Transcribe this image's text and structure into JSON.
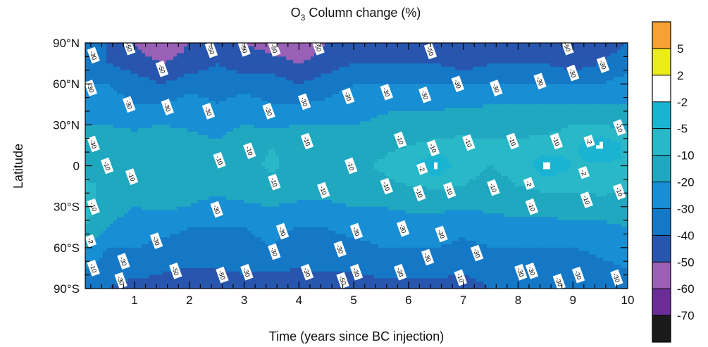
{
  "chart_data": {
    "type": "heatmap",
    "subtype": "filled contour",
    "title_prefix": "O",
    "title_subscript": "3",
    "title_suffix": " Column  change (%)",
    "xlabel": "Time (years since BC injection)",
    "ylabel": "Latitude",
    "xlim": [
      0,
      10
    ],
    "ylim": [
      -90,
      90
    ],
    "x_ticks": [
      1,
      2,
      3,
      4,
      5,
      6,
      7,
      8,
      9,
      10
    ],
    "x_tick_labels": [
      "1",
      "2",
      "3",
      "4",
      "5",
      "6",
      "7",
      "8",
      "9",
      "10"
    ],
    "y_ticks": [
      90,
      60,
      30,
      0,
      -30,
      -60,
      -90
    ],
    "y_tick_labels": [
      "90°N",
      "60°N",
      "30°N",
      "0",
      "30°S",
      "60°S",
      "90°S"
    ],
    "colorbar": {
      "levels": [
        5,
        2,
        -2,
        -5,
        -10,
        -20,
        -30,
        -40,
        -50,
        -60,
        -70
      ],
      "level_labels": [
        "5",
        "2",
        "-2",
        "-5",
        "-10",
        "-20",
        "-30",
        "-40",
        "-50",
        "-60",
        "-70"
      ],
      "bin_colors": [
        "#f7a035",
        "#ecec1c",
        "#ffffff",
        "#1ab3d2",
        "#28b8c8",
        "#1fa8c0",
        "#188fd4",
        "#1478c6",
        "#2856ae",
        "#9960b6",
        "#6c2c98",
        "#1a1a1a"
      ]
    },
    "latitudes": [
      90,
      75,
      60,
      45,
      30,
      15,
      0,
      -15,
      -30,
      -45,
      -60,
      -75,
      -90
    ],
    "times": [
      0.1,
      0.5,
      1,
      1.5,
      2,
      2.5,
      3,
      3.5,
      4,
      4.5,
      5,
      5.5,
      6,
      6.5,
      7,
      7.5,
      8,
      8.5,
      9,
      9.5,
      10
    ],
    "values": [
      [
        -40,
        -40,
        -50,
        -60,
        -50,
        -45,
        -50,
        -55,
        -60,
        -50,
        -45,
        -45,
        -45,
        -45,
        -50,
        -45,
        -45,
        -45,
        -50,
        -45,
        -40
      ],
      [
        -35,
        -40,
        -45,
        -50,
        -45,
        -40,
        -45,
        -45,
        -50,
        -45,
        -40,
        -40,
        -40,
        -40,
        -45,
        -40,
        -40,
        -40,
        -45,
        -40,
        -35
      ],
      [
        -30,
        -30,
        -35,
        -40,
        -35,
        -35,
        -35,
        -35,
        -40,
        -35,
        -30,
        -30,
        -30,
        -30,
        -30,
        -30,
        -30,
        -30,
        -30,
        -30,
        -25
      ],
      [
        -25,
        -25,
        -30,
        -30,
        -25,
        -30,
        -25,
        -30,
        -30,
        -28,
        -25,
        -22,
        -22,
        -22,
        -22,
        -20,
        -20,
        -20,
        -20,
        -20,
        -20
      ],
      [
        -20,
        -20,
        -22,
        -20,
        -22,
        -25,
        -20,
        -22,
        -20,
        -20,
        -20,
        -18,
        -15,
        -15,
        -12,
        -15,
        -12,
        -12,
        -10,
        -10,
        -12
      ],
      [
        -20,
        -15,
        -15,
        -12,
        -15,
        -18,
        -12,
        -10,
        -12,
        -15,
        -15,
        -12,
        -10,
        -8,
        -8,
        -8,
        -9,
        -8,
        -6,
        -1,
        -6
      ],
      [
        -20,
        -12,
        -12,
        -12,
        -15,
        -15,
        -12,
        -9,
        -12,
        -15,
        -12,
        -9,
        -6,
        -1,
        -8,
        -10,
        -8,
        -1,
        -5,
        -6,
        -5
      ],
      [
        -5,
        -15,
        -10,
        -15,
        -15,
        -15,
        -14,
        -12,
        -15,
        -15,
        -15,
        -12,
        -10,
        -9,
        -10,
        -12,
        -10,
        -8,
        -8,
        -6,
        -8
      ],
      [
        -5,
        -15,
        -20,
        -18,
        -20,
        -25,
        -22,
        -20,
        -22,
        -22,
        -20,
        -20,
        -18,
        -18,
        -18,
        -18,
        -15,
        -15,
        -15,
        -15,
        -15
      ],
      [
        -10,
        -20,
        -25,
        -28,
        -30,
        -30,
        -30,
        -28,
        -30,
        -30,
        -28,
        -28,
        -25,
        -25,
        -28,
        -25,
        -25,
        -25,
        -22,
        -22,
        -20
      ],
      [
        -20,
        -30,
        -30,
        -32,
        -32,
        -35,
        -32,
        -30,
        -35,
        -32,
        -32,
        -30,
        -30,
        -30,
        -32,
        -30,
        -30,
        -30,
        -30,
        -28,
        -25
      ],
      [
        -30,
        -35,
        -35,
        -38,
        -40,
        -40,
        -38,
        -38,
        -40,
        -38,
        -38,
        -35,
        -35,
        -35,
        -38,
        -35,
        -35,
        -35,
        -35,
        -32,
        -30
      ],
      [
        -40,
        -40,
        -45,
        -45,
        -50,
        -50,
        -45,
        -50,
        -45,
        -50,
        -50,
        -45,
        -45,
        -45,
        -45,
        -40,
        -40,
        -40,
        -40,
        -40,
        -35
      ]
    ],
    "contour_labels": [
      {
        "x": 0.25,
        "y": 81,
        "t": "-30"
      },
      {
        "x": 0.9,
        "y": 87,
        "t": "-50"
      },
      {
        "x": 1.5,
        "y": 71,
        "t": "-50"
      },
      {
        "x": 2.4,
        "y": 85,
        "t": "-50"
      },
      {
        "x": 3.0,
        "y": 86,
        "t": "-50"
      },
      {
        "x": 3.55,
        "y": 86,
        "t": "-50"
      },
      {
        "x": 4.35,
        "y": 87,
        "t": "-50"
      },
      {
        "x": 6.4,
        "y": 84,
        "t": "-50"
      },
      {
        "x": 8.9,
        "y": 87,
        "t": "-50"
      },
      {
        "x": 9.55,
        "y": 74,
        "t": "-30"
      },
      {
        "x": 0.2,
        "y": 57,
        "t": "-30"
      },
      {
        "x": 0.25,
        "y": 16,
        "t": "-30"
      },
      {
        "x": 0.9,
        "y": 45,
        "t": "-30"
      },
      {
        "x": 1.6,
        "y": 43,
        "t": "-30"
      },
      {
        "x": 2.35,
        "y": 40,
        "t": "-30"
      },
      {
        "x": 3.45,
        "y": 40,
        "t": "-30"
      },
      {
        "x": 4.1,
        "y": 47,
        "t": "-30"
      },
      {
        "x": 4.9,
        "y": 51,
        "t": "-30"
      },
      {
        "x": 5.6,
        "y": 54,
        "t": "-30"
      },
      {
        "x": 6.3,
        "y": 52,
        "t": "-30"
      },
      {
        "x": 6.9,
        "y": 60,
        "t": "-30"
      },
      {
        "x": 7.6,
        "y": 57,
        "t": "-30"
      },
      {
        "x": 8.4,
        "y": 62,
        "t": "-30"
      },
      {
        "x": 9.0,
        "y": 68,
        "t": "-30"
      },
      {
        "x": 0.5,
        "y": 0,
        "t": "-10"
      },
      {
        "x": 0.95,
        "y": -8,
        "t": "-10"
      },
      {
        "x": 3.1,
        "y": 11,
        "t": "-10"
      },
      {
        "x": 2.55,
        "y": 4,
        "t": "-10"
      },
      {
        "x": 4.15,
        "y": 18,
        "t": "-10"
      },
      {
        "x": 3.55,
        "y": -12,
        "t": "-10"
      },
      {
        "x": 5.85,
        "y": 19,
        "t": "-10"
      },
      {
        "x": 6.45,
        "y": 13,
        "t": "-10"
      },
      {
        "x": 7.1,
        "y": 17,
        "t": "-10"
      },
      {
        "x": 7.9,
        "y": 18,
        "t": "-10"
      },
      {
        "x": 8.7,
        "y": 18,
        "t": "-10"
      },
      {
        "x": 9.85,
        "y": 28,
        "t": "-10"
      },
      {
        "x": 4.95,
        "y": 0,
        "t": "-10"
      },
      {
        "x": 4.45,
        "y": -18,
        "t": "-10"
      },
      {
        "x": 5.6,
        "y": -15,
        "t": "-10"
      },
      {
        "x": 6.2,
        "y": -20,
        "t": "-10"
      },
      {
        "x": 6.75,
        "y": -18,
        "t": "-10"
      },
      {
        "x": 7.55,
        "y": -16,
        "t": "-10"
      },
      {
        "x": 8.25,
        "y": -30,
        "t": "-10"
      },
      {
        "x": 9.25,
        "y": -25,
        "t": "-10"
      },
      {
        "x": 9.85,
        "y": -19,
        "t": "-10"
      },
      {
        "x": 6.25,
        "y": -2,
        "t": "-2"
      },
      {
        "x": 8.2,
        "y": -13,
        "t": "-2"
      },
      {
        "x": 9.3,
        "y": 18,
        "t": "-2"
      },
      {
        "x": 9.2,
        "y": -5,
        "t": "-2"
      },
      {
        "x": 0.25,
        "y": -30,
        "t": "-10"
      },
      {
        "x": 0.2,
        "y": -55,
        "t": "-2"
      },
      {
        "x": 0.25,
        "y": -75,
        "t": "-10"
      },
      {
        "x": 1.4,
        "y": -55,
        "t": "-30"
      },
      {
        "x": 0.8,
        "y": -70,
        "t": "-30"
      },
      {
        "x": 0.75,
        "y": -84,
        "t": "-30"
      },
      {
        "x": 1.75,
        "y": -77,
        "t": "-50"
      },
      {
        "x": 2.5,
        "y": -32,
        "t": "-30"
      },
      {
        "x": 2.6,
        "y": -80,
        "t": "-50"
      },
      {
        "x": 3.05,
        "y": -78,
        "t": "-30"
      },
      {
        "x": 3.7,
        "y": -48,
        "t": "-30"
      },
      {
        "x": 3.55,
        "y": -63,
        "t": "-30"
      },
      {
        "x": 4.15,
        "y": -78,
        "t": "-30"
      },
      {
        "x": 4.75,
        "y": -61,
        "t": "-30"
      },
      {
        "x": 4.8,
        "y": -84,
        "t": "-50"
      },
      {
        "x": 5.05,
        "y": -48,
        "t": "-30"
      },
      {
        "x": 5.05,
        "y": -78,
        "t": "-30"
      },
      {
        "x": 5.9,
        "y": -46,
        "t": "-30"
      },
      {
        "x": 5.85,
        "y": -78,
        "t": "-30"
      },
      {
        "x": 6.6,
        "y": -50,
        "t": "-30"
      },
      {
        "x": 6.35,
        "y": -67,
        "t": "-30"
      },
      {
        "x": 6.95,
        "y": -82,
        "t": "-10"
      },
      {
        "x": 7.25,
        "y": -64,
        "t": "-30"
      },
      {
        "x": 8.05,
        "y": -78,
        "t": "-30"
      },
      {
        "x": 8.25,
        "y": -77,
        "t": "-30"
      },
      {
        "x": 8.75,
        "y": -85,
        "t": "-30"
      },
      {
        "x": 9.1,
        "y": -80,
        "t": "-30"
      },
      {
        "x": 9.8,
        "y": -82,
        "t": "-30"
      }
    ]
  }
}
